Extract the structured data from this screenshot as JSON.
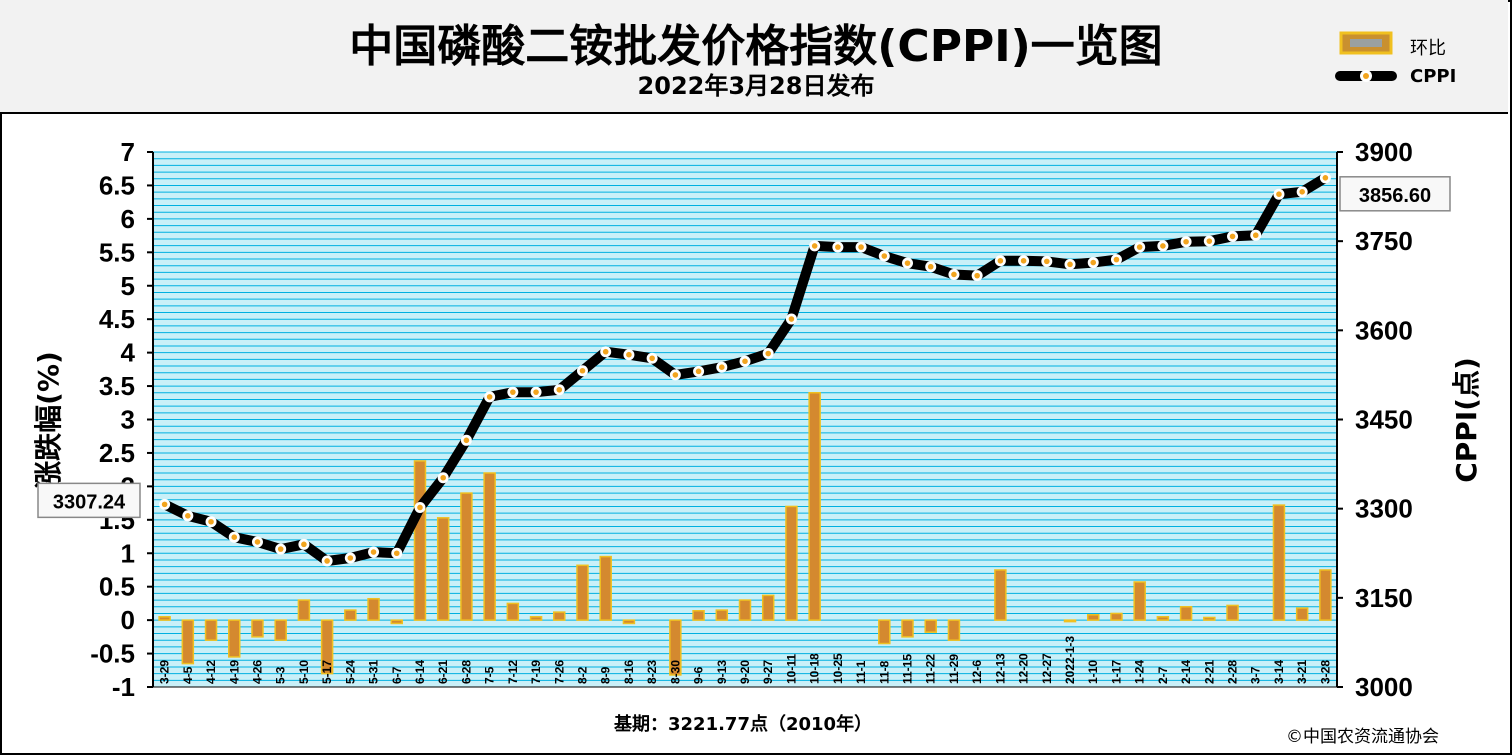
{
  "title": "中国磷酸二铵批发价格指数(CPPI)一览图",
  "subtitle": "2022年3月28日发布",
  "legend": {
    "bar": "环比",
    "line": "CPPI"
  },
  "footer": {
    "base_period": "基期：3221.77点（2010年）",
    "credit": "©中国农资流通协会"
  },
  "colors": {
    "plot_bg": "#c9f0f8",
    "grid": "#00b0e0",
    "bar": "#d4892f",
    "bar_edge": "#f0c020",
    "line": "#000000",
    "marker": "#f2a41e"
  },
  "chart_data": {
    "type": "bar+line",
    "categories": [
      "3-29",
      "4-5",
      "4-12",
      "4-19",
      "4-26",
      "5-3",
      "5-10",
      "5-17",
      "5-24",
      "5-31",
      "6-7",
      "6-14",
      "6-21",
      "6-28",
      "7-5",
      "7-12",
      "7-19",
      "7-26",
      "8-2",
      "8-9",
      "8-16",
      "8-23",
      "8-30",
      "9-6",
      "9-13",
      "9-20",
      "9-27",
      "10-11",
      "10-18",
      "10-25",
      "11-1",
      "11-8",
      "11-15",
      "11-22",
      "11-29",
      "12-6",
      "12-13",
      "12-20",
      "12-27",
      "2022-1-3",
      "1-10",
      "1-17",
      "1-24",
      "2-7",
      "2-14",
      "2-21",
      "2-28",
      "3-7",
      "3-14",
      "3-21",
      "3-28"
    ],
    "series": [
      {
        "name": "环比",
        "axis": "left",
        "values": [
          0.05,
          -0.65,
          -0.3,
          -0.55,
          -0.25,
          -0.3,
          0.3,
          -0.8,
          0.15,
          0.32,
          -0.05,
          2.38,
          1.53,
          1.9,
          2.2,
          0.25,
          0.05,
          0.12,
          0.82,
          0.95,
          -0.05,
          0,
          -0.82,
          0.14,
          0.15,
          0.3,
          0.37,
          1.7,
          3.4,
          0,
          0,
          -0.35,
          -0.25,
          -0.18,
          -0.3,
          0,
          0.75,
          0,
          0,
          -0.02,
          0.08,
          0.1,
          0.57,
          0.05,
          0.2,
          0.04,
          0.22,
          0,
          1.72,
          0.18,
          0.75
        ]
      },
      {
        "name": "CPPI",
        "axis": "right",
        "values": [
          3307.24,
          3288,
          3278,
          3252,
          3244,
          3232,
          3240,
          3212,
          3217,
          3227,
          3225,
          3302,
          3352,
          3415,
          3488,
          3496,
          3496,
          3500,
          3532,
          3564,
          3559,
          3553,
          3525,
          3531,
          3538,
          3548,
          3561,
          3619,
          3742,
          3740,
          3740,
          3725,
          3713,
          3707,
          3694,
          3692,
          3717,
          3717,
          3716,
          3711,
          3714,
          3719,
          3740,
          3742,
          3749,
          3750,
          3758,
          3760,
          3829,
          3833,
          3856.6
        ]
      }
    ],
    "yleft": {
      "label": "涨跌幅(%)",
      "range": [
        -1,
        7
      ],
      "ticks": [
        "-1",
        "-0.5",
        "0",
        "0.5",
        "1",
        "1.5",
        "2",
        "2.5",
        "3",
        "3.5",
        "4",
        "4.5",
        "5",
        "5.5",
        "6",
        "6.5",
        "7"
      ]
    },
    "yright": {
      "label": "CPPI(点)",
      "range": [
        3000,
        3900
      ],
      "ticks": [
        "3000",
        "3150",
        "3300",
        "3450",
        "3600",
        "3750",
        "3900"
      ]
    },
    "annotations": {
      "start": "3307.24",
      "end": "3856.60"
    },
    "grid": true,
    "legend_position": "top-right"
  }
}
